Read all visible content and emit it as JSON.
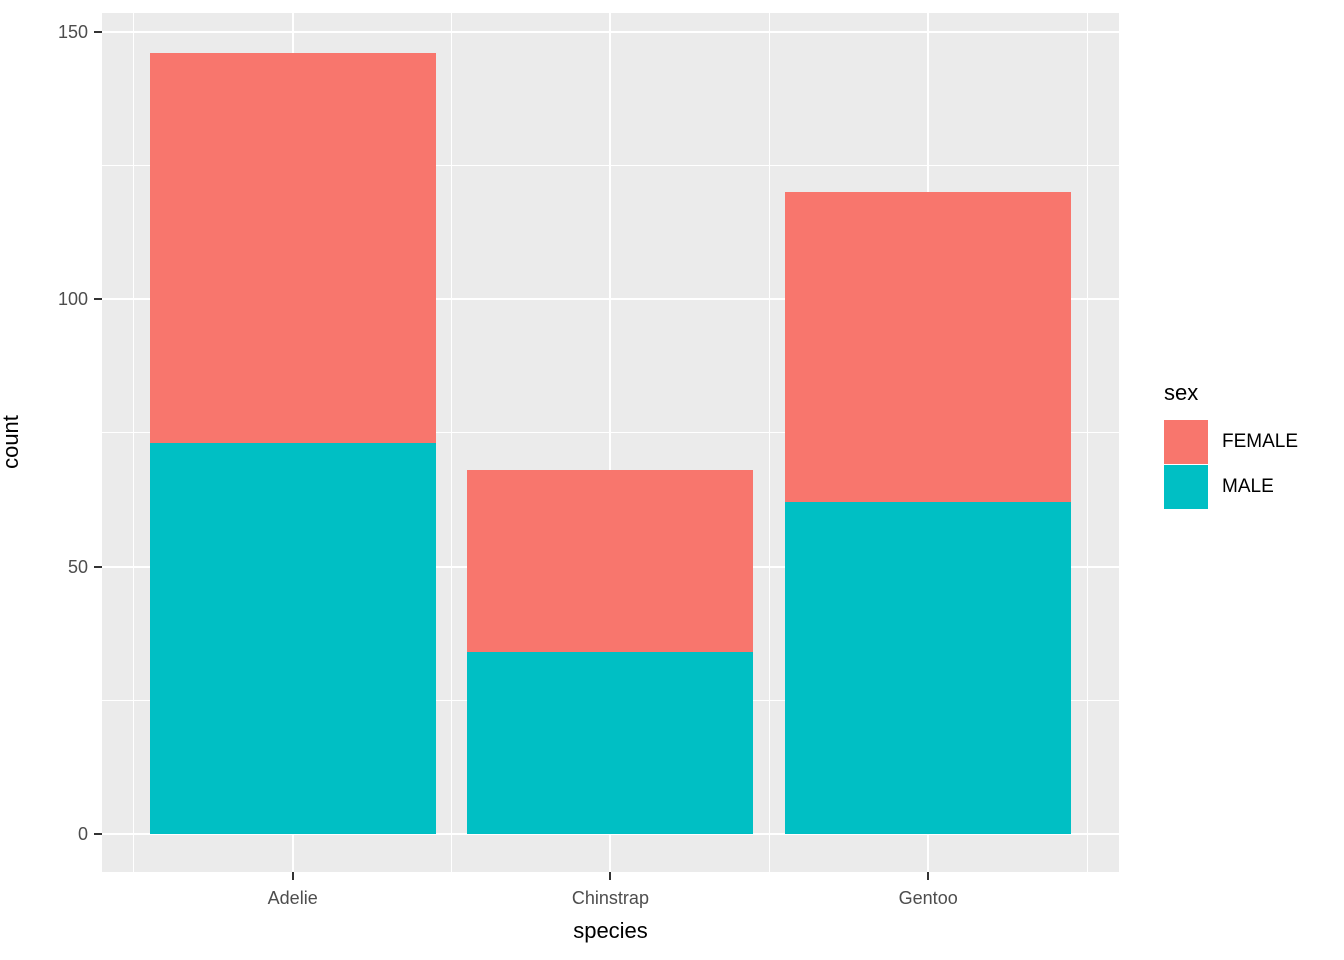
{
  "chart_data": {
    "type": "bar",
    "stacked": true,
    "title": "",
    "xlabel": "species",
    "ylabel": "count",
    "categories": [
      "Adelie",
      "Chinstrap",
      "Gentoo"
    ],
    "series": [
      {
        "name": "MALE",
        "color": "#00BFC4",
        "values": [
          73,
          34,
          62
        ]
      },
      {
        "name": "FEMALE",
        "color": "#F8766D",
        "values": [
          73,
          34,
          58
        ]
      }
    ],
    "totals": [
      146,
      68,
      120
    ],
    "y_axis": {
      "ticks": [
        0,
        50,
        100,
        150
      ],
      "tick_labels": [
        "0",
        "50",
        "100",
        "150"
      ],
      "minor_gridlines": [
        25,
        75,
        125
      ],
      "ylim": [
        0,
        153
      ]
    },
    "legend": {
      "title": "sex",
      "position": "right",
      "entries": [
        {
          "label": "FEMALE",
          "color": "#F8766D"
        },
        {
          "label": "MALE",
          "color": "#00BFC4"
        }
      ]
    },
    "style": {
      "panel_background": "#EBEBEB",
      "gridline_color": "#FFFFFF",
      "axis_text_color": "#4D4D4D",
      "axis_title_color": "#000000",
      "tick_mark_color": "#333333"
    },
    "grid": true
  }
}
